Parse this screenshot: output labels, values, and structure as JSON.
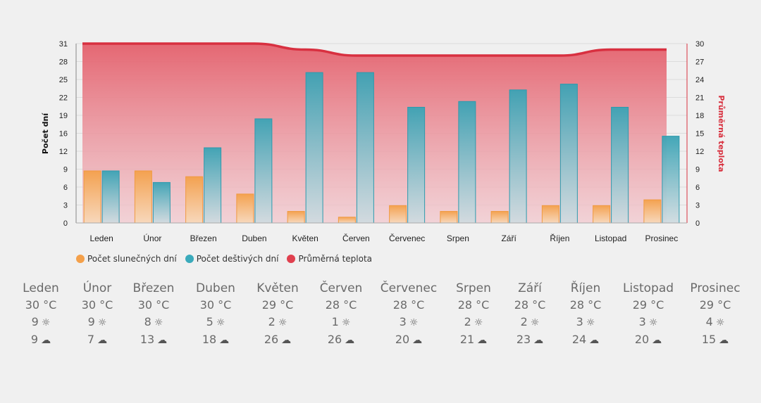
{
  "chart_data": {
    "type": "bar",
    "categories": [
      "Leden",
      "Únor",
      "Březen",
      "Duben",
      "Květen",
      "Červen",
      "Červenec",
      "Srpen",
      "Září",
      "Říjen",
      "Listopad",
      "Prosinec"
    ],
    "series": [
      {
        "name": "Počet slunečných dní",
        "type": "bar",
        "axis": "left",
        "color": "#f4a04a",
        "values": [
          9,
          9,
          8,
          5,
          2,
          1,
          3,
          2,
          2,
          3,
          3,
          4
        ]
      },
      {
        "name": "Počet deštivých dní",
        "type": "bar",
        "axis": "left",
        "color": "#3aaabb",
        "values": [
          9,
          7,
          13,
          18,
          26,
          26,
          20,
          21,
          23,
          24,
          20,
          15
        ]
      },
      {
        "name": "Průměrná teplota",
        "type": "area",
        "axis": "right",
        "color": "#e0404e",
        "values": [
          30,
          30,
          30,
          30,
          29,
          28,
          28,
          28,
          28,
          28,
          29,
          29
        ]
      }
    ],
    "ylabel": "Počet dní",
    "y2label": "Průměrná teplota",
    "ylim": [
      0,
      31
    ],
    "y2lim": [
      0,
      30
    ],
    "yticks": [
      "0",
      "3",
      "6",
      "9",
      "12",
      "16",
      "19",
      "22",
      "25",
      "28",
      "31"
    ],
    "y2ticks": [
      "0",
      "3",
      "6",
      "9",
      "12",
      "15",
      "18",
      "21",
      "24",
      "27",
      "30"
    ],
    "grid": true,
    "legend": "bottom-left"
  },
  "legend": [
    {
      "label": "Počet slunečných dní",
      "color": "#f4a04a"
    },
    {
      "label": "Počet deštivých dní",
      "color": "#3aaabb"
    },
    {
      "label": "Průměrná teplota",
      "color": "#e0404e"
    }
  ],
  "summary": [
    {
      "month": "Leden",
      "temp": "30 °C",
      "sunny": "9",
      "rainy": "9"
    },
    {
      "month": "Únor",
      "temp": "30 °C",
      "sunny": "9",
      "rainy": "7"
    },
    {
      "month": "Březen",
      "temp": "30 °C",
      "sunny": "8",
      "rainy": "13"
    },
    {
      "month": "Duben",
      "temp": "30 °C",
      "sunny": "5",
      "rainy": "18"
    },
    {
      "month": "Květen",
      "temp": "29 °C",
      "sunny": "2",
      "rainy": "26"
    },
    {
      "month": "Červen",
      "temp": "28 °C",
      "sunny": "1",
      "rainy": "26"
    },
    {
      "month": "Červenec",
      "temp": "28 °C",
      "sunny": "3",
      "rainy": "20"
    },
    {
      "month": "Srpen",
      "temp": "28 °C",
      "sunny": "2",
      "rainy": "21"
    },
    {
      "month": "Září",
      "temp": "28 °C",
      "sunny": "2",
      "rainy": "23"
    },
    {
      "month": "Říjen",
      "temp": "28 °C",
      "sunny": "3",
      "rainy": "24"
    },
    {
      "month": "Listopad",
      "temp": "29 °C",
      "sunny": "3",
      "rainy": "20"
    },
    {
      "month": "Prosinec",
      "temp": "29 °C",
      "sunny": "4",
      "rainy": "15"
    }
  ],
  "icons": {
    "sunny": "sun-icon",
    "rainy": "cloud-rain-icon"
  }
}
